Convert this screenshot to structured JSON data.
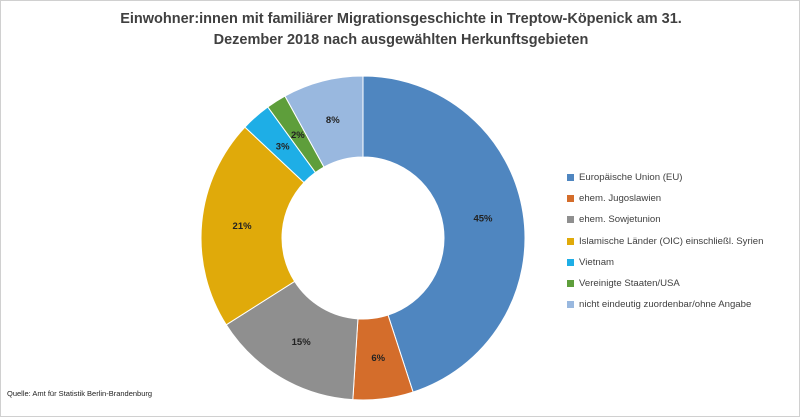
{
  "chart_data": {
    "type": "donut",
    "title": "Einwohner:innen mit familiärer Migrationsgeschichte in Treptow-Köpenick am 31. Dezember 2018 nach ausgewählten Herkunftsgebieten",
    "categories": [
      "Europäische Union (EU)",
      "ehem. Jugoslawien",
      "ehem. Sowjetunion",
      "Islamische Länder (OIC) einschließl. Syrien",
      "Vietnam",
      "Vereinigte Staaten/USA",
      "nicht eindeutig zuordenbar/ohne Angabe"
    ],
    "values": [
      45,
      6,
      15,
      21,
      3,
      2,
      8
    ],
    "value_labels": [
      "45%",
      "6%",
      "15%",
      "21%",
      "3%",
      "2%",
      "8%"
    ],
    "unit": "%",
    "colors": [
      "#4f86c0",
      "#d46d2b",
      "#8f8f8f",
      "#e0aa0a",
      "#1eaee6",
      "#5e9e3b",
      "#99b8df"
    ],
    "legend_position": "right"
  },
  "source": "Quelle: Amt für Statistik Berlin-Brandenburg"
}
